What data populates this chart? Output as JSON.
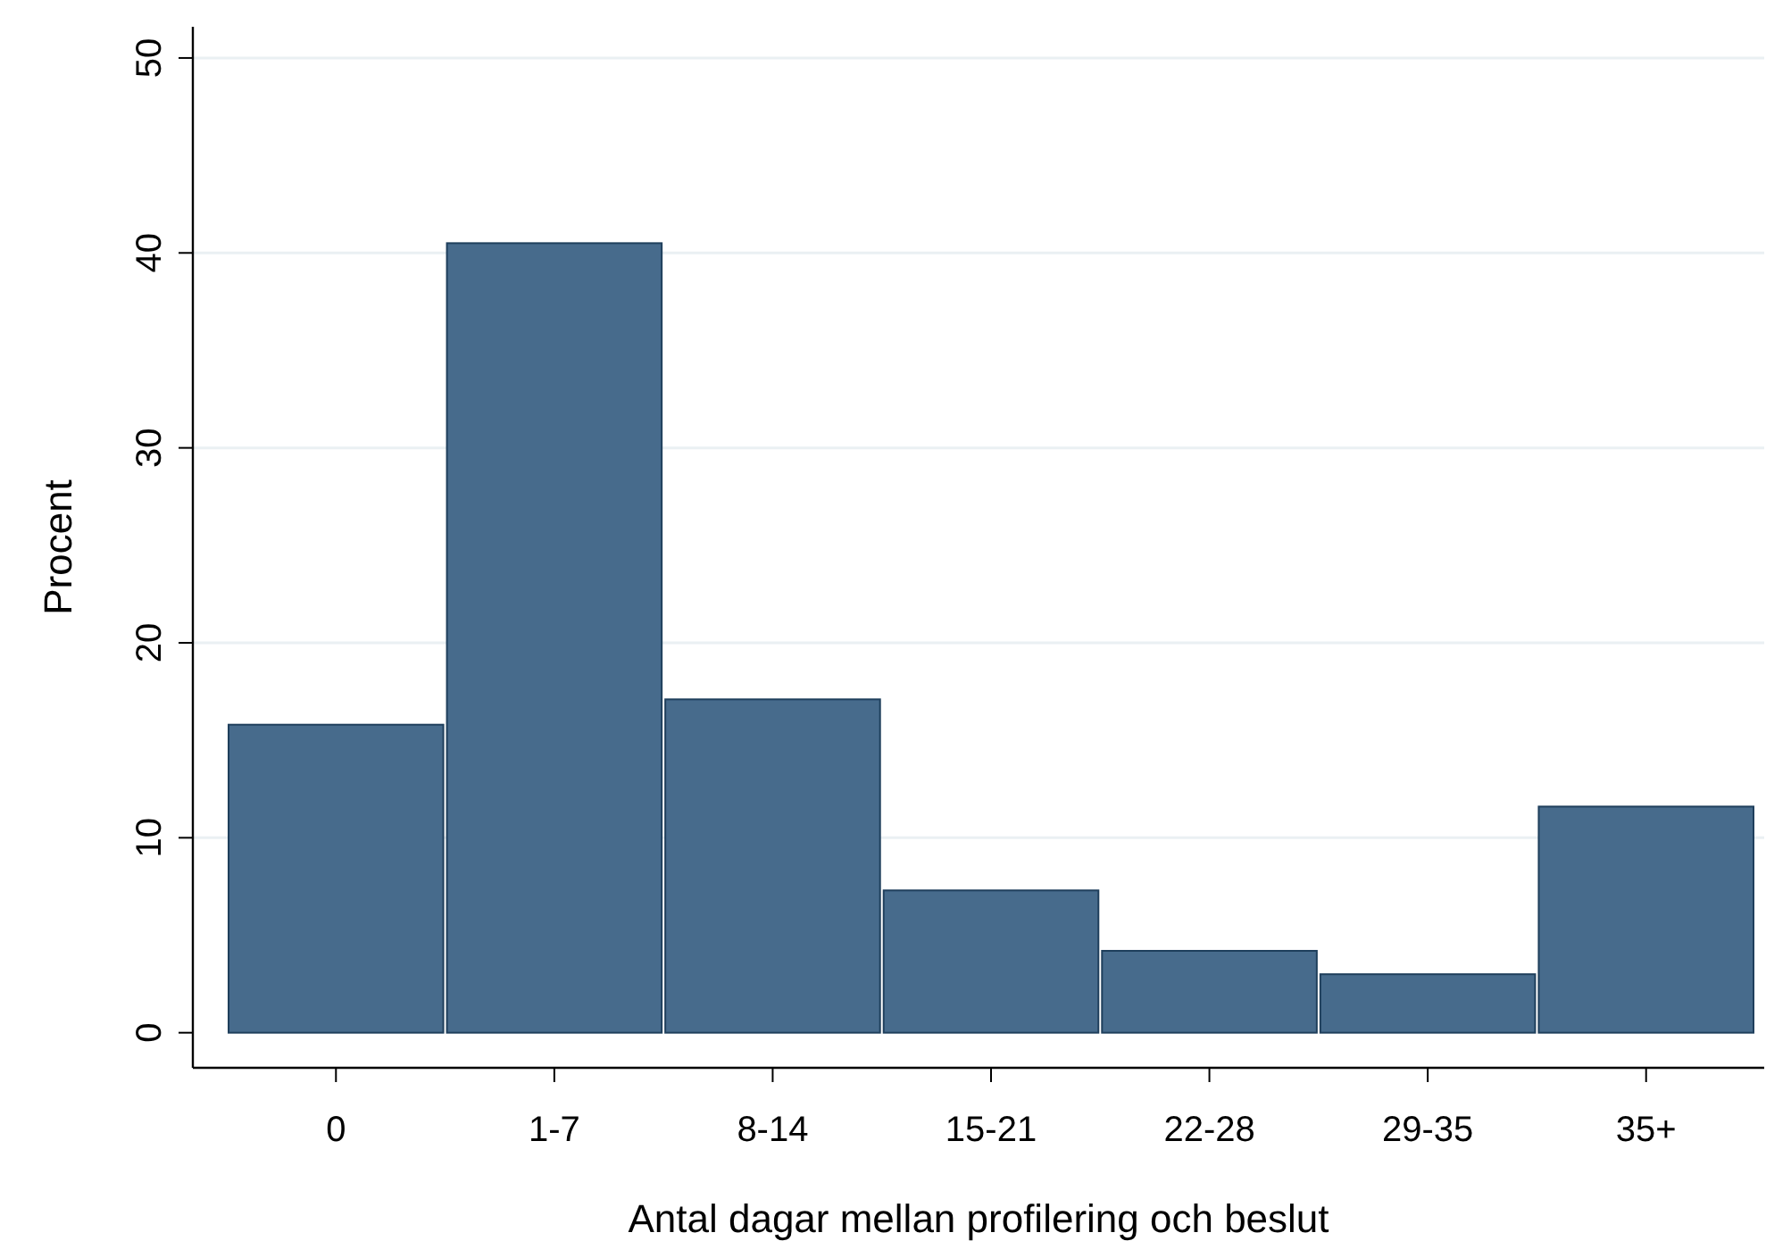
{
  "chart_data": {
    "type": "bar",
    "xlabel": "Antal dagar mellan profilering och beslut",
    "ylabel": "Procent",
    "categories": [
      "0",
      "1-7",
      "8-14",
      "15-21",
      "22-28",
      "29-35",
      "35+"
    ],
    "values": [
      15.8,
      40.5,
      17.1,
      7.3,
      4.2,
      3.0,
      11.6
    ],
    "color": "#476b8c",
    "ylim": [
      -1.8,
      51.6
    ],
    "yticks": [
      0,
      10,
      20,
      30,
      40,
      50
    ],
    "grid": "y"
  }
}
